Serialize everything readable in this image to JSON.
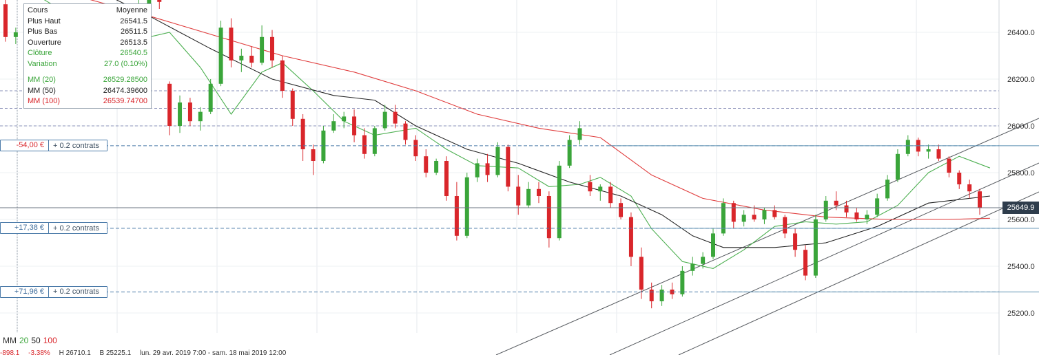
{
  "tooltip": {
    "header_left": "Cours",
    "header_right": "Moyenne",
    "rows": [
      {
        "label": "Plus Haut",
        "value": "26541.5"
      },
      {
        "label": "Plus Bas",
        "value": "26511.5"
      },
      {
        "label": "Ouverture",
        "value": "26513.5"
      },
      {
        "label": "Clôture",
        "value": "26540.5"
      },
      {
        "label": "Variation",
        "value": "27.0 (0.10%)"
      }
    ],
    "ma_rows": [
      {
        "label": "MM (20)",
        "value": "26529.28500"
      },
      {
        "label": "MM (50)",
        "value": "26474.39600"
      },
      {
        "label": "MM (100)",
        "value": "26539.74700"
      }
    ]
  },
  "orders": [
    {
      "pnl": "-54,00 €",
      "qty": "+ 0.2 contrats",
      "price": 25915
    },
    {
      "pnl": "+17,38 €",
      "qty": "+ 0.2 contrats",
      "price": 25562
    },
    {
      "pnl": "+71,96 €",
      "qty": "+ 0.2 contrats",
      "price": 25290
    }
  ],
  "current_price": {
    "label": "25649.9",
    "value": 25649.9
  },
  "legend": {
    "prefix": "MM",
    "ma20": "20",
    "ma50": "50",
    "ma100": "100"
  },
  "footer": {
    "change": "-898.1",
    "pct": "-3.38%",
    "high": "H 26710.1",
    "low": "B 25225.1",
    "range": "lun. 29 avr. 2019 7:00 - sam. 18 mai 2019 12:00"
  },
  "colors": {
    "up": "#3aa53a",
    "down": "#d9262b",
    "ma20": "#4caf50",
    "ma50": "#222222",
    "ma100": "#e03c3c",
    "price_tag": "#2f3d4c",
    "order_line": "#4a7aa8"
  },
  "chart_data": {
    "type": "candlestick",
    "y_axis": {
      "ticks": [
        25200,
        25400,
        25600,
        25800,
        26000,
        26200,
        26400
      ],
      "tick_labels": [
        "25200.0",
        "25400.0",
        "25600.0",
        "25800.0",
        "26000.0",
        "26200.0",
        "26400.0"
      ],
      "range": [
        25100,
        26500
      ]
    },
    "reference_lines": [
      26150,
      26075,
      26000
    ],
    "candles": [
      [
        26520,
        26600,
        26360,
        26380
      ],
      [
        26380,
        26420,
        26350,
        26400
      ],
      [
        26400,
        26460,
        26360,
        26440
      ],
      [
        26440,
        26480,
        26390,
        26430
      ],
      [
        26430,
        26470,
        26340,
        26360
      ],
      [
        26360,
        26380,
        26180,
        26230
      ],
      [
        26230,
        26300,
        26200,
        26280
      ],
      [
        26280,
        26330,
        26260,
        26310
      ],
      [
        26310,
        26340,
        26280,
        26320
      ],
      [
        26320,
        26350,
        26290,
        26300
      ],
      [
        26300,
        26330,
        26270,
        26310
      ],
      [
        26310,
        26370,
        26300,
        26350
      ],
      [
        26350,
        26480,
        26340,
        26450
      ],
      [
        26450,
        26540,
        26420,
        26520
      ],
      [
        26520,
        26560,
        26480,
        26540
      ],
      [
        26540,
        26560,
        26500,
        26530
      ],
      [
        26180,
        26190,
        25960,
        26000
      ],
      [
        26000,
        26130,
        25970,
        26100
      ],
      [
        26100,
        26120,
        26000,
        26020
      ],
      [
        26020,
        26080,
        25980,
        26060
      ],
      [
        26060,
        26200,
        26050,
        26180
      ],
      [
        26180,
        26450,
        26170,
        26420
      ],
      [
        26420,
        26460,
        26250,
        26280
      ],
      [
        26280,
        26330,
        26230,
        26300
      ],
      [
        26300,
        26340,
        26250,
        26270
      ],
      [
        26270,
        26430,
        26260,
        26380
      ],
      [
        26380,
        26410,
        26250,
        26280
      ],
      [
        26280,
        26300,
        26120,
        26150
      ],
      [
        26150,
        26160,
        26000,
        26030
      ],
      [
        26030,
        26050,
        25850,
        25900
      ],
      [
        25900,
        25920,
        25790,
        25850
      ],
      [
        25850,
        26000,
        25840,
        25980
      ],
      [
        25980,
        26050,
        25970,
        26020
      ],
      [
        26020,
        26060,
        25990,
        26040
      ],
      [
        26040,
        26070,
        25930,
        25960
      ],
      [
        25960,
        25990,
        25860,
        25880
      ],
      [
        25880,
        26000,
        25870,
        25990
      ],
      [
        25990,
        26090,
        25980,
        26060
      ],
      [
        26060,
        26090,
        25990,
        26010
      ],
      [
        26010,
        26020,
        25920,
        25940
      ],
      [
        25940,
        25960,
        25850,
        25870
      ],
      [
        25870,
        25900,
        25780,
        25800
      ],
      [
        25800,
        25860,
        25790,
        25850
      ],
      [
        25850,
        25870,
        25680,
        25700
      ],
      [
        25700,
        25760,
        25510,
        25530
      ],
      [
        25530,
        25800,
        25520,
        25780
      ],
      [
        25780,
        25860,
        25760,
        25840
      ],
      [
        25840,
        25880,
        25760,
        25790
      ],
      [
        25790,
        25930,
        25780,
        25910
      ],
      [
        25910,
        25920,
        25720,
        25740
      ],
      [
        25740,
        25790,
        25620,
        25660
      ],
      [
        25660,
        25760,
        25650,
        25730
      ],
      [
        25730,
        25760,
        25670,
        25700
      ],
      [
        25700,
        25720,
        25480,
        25520
      ],
      [
        25520,
        25850,
        25510,
        25830
      ],
      [
        25830,
        25960,
        25820,
        25940
      ],
      [
        25940,
        26020,
        25920,
        25990
      ],
      [
        25760,
        25790,
        25700,
        25720
      ],
      [
        25720,
        25750,
        25680,
        25740
      ],
      [
        25740,
        25760,
        25650,
        25670
      ],
      [
        25670,
        25690,
        25600,
        25610
      ],
      [
        25610,
        25630,
        25400,
        25440
      ],
      [
        25440,
        25480,
        25260,
        25300
      ],
      [
        25300,
        25330,
        25220,
        25250
      ],
      [
        25250,
        25320,
        25230,
        25300
      ],
      [
        25300,
        25330,
        25260,
        25280
      ],
      [
        25280,
        25400,
        25270,
        25380
      ],
      [
        25380,
        25440,
        25360,
        25410
      ],
      [
        25410,
        25460,
        25390,
        25440
      ],
      [
        25440,
        25560,
        25430,
        25540
      ],
      [
        25540,
        25690,
        25530,
        25670
      ],
      [
        25670,
        25680,
        25560,
        25590
      ],
      [
        25590,
        25640,
        25570,
        25620
      ],
      [
        25620,
        25660,
        25590,
        25600
      ],
      [
        25600,
        25650,
        25580,
        25640
      ],
      [
        25640,
        25660,
        25600,
        25610
      ],
      [
        25610,
        25620,
        25520,
        25540
      ],
      [
        25540,
        25560,
        25440,
        25470
      ],
      [
        25470,
        25490,
        25340,
        25360
      ],
      [
        25360,
        25620,
        25350,
        25600
      ],
      [
        25600,
        25700,
        25590,
        25680
      ],
      [
        25680,
        25720,
        25640,
        25660
      ],
      [
        25660,
        25680,
        25610,
        25630
      ],
      [
        25630,
        25650,
        25590,
        25600
      ],
      [
        25600,
        25640,
        25580,
        25620
      ],
      [
        25620,
        25710,
        25610,
        25690
      ],
      [
        25690,
        25790,
        25680,
        25770
      ],
      [
        25770,
        25900,
        25760,
        25880
      ],
      [
        25880,
        25960,
        25870,
        25940
      ],
      [
        25940,
        25950,
        25870,
        25890
      ],
      [
        25890,
        25920,
        25860,
        25900
      ],
      [
        25900,
        25920,
        25850,
        25860
      ],
      [
        25860,
        25870,
        25780,
        25800
      ],
      [
        25800,
        25810,
        25730,
        25750
      ],
      [
        25750,
        25770,
        25690,
        25720
      ],
      [
        25720,
        25730,
        25620,
        25650
      ]
    ],
    "ma_lines": {
      "MM (20)": [
        [
          0,
          26620
        ],
        [
          3,
          26560
        ],
        [
          6,
          26480
        ],
        [
          9,
          26400
        ],
        [
          12,
          26330
        ],
        [
          14,
          26380
        ],
        [
          16,
          26400
        ],
        [
          19,
          26250
        ],
        [
          22,
          26050
        ],
        [
          25,
          26230
        ],
        [
          27,
          26270
        ],
        [
          30,
          26150
        ],
        [
          33,
          26020
        ],
        [
          36,
          25960
        ],
        [
          40,
          25990
        ],
        [
          43,
          25900
        ],
        [
          46,
          25830
        ],
        [
          50,
          25820
        ],
        [
          53,
          25740
        ],
        [
          56,
          25750
        ],
        [
          58,
          25780
        ],
        [
          61,
          25700
        ],
        [
          63,
          25560
        ],
        [
          66,
          25420
        ],
        [
          69,
          25390
        ],
        [
          72,
          25470
        ],
        [
          75,
          25570
        ],
        [
          78,
          25590
        ],
        [
          81,
          25580
        ],
        [
          84,
          25590
        ],
        [
          87,
          25660
        ],
        [
          90,
          25800
        ],
        [
          93,
          25870
        ],
        [
          96,
          25820
        ]
      ],
      "MM (50)": [
        [
          0,
          26750
        ],
        [
          8,
          26600
        ],
        [
          14,
          26470
        ],
        [
          20,
          26330
        ],
        [
          26,
          26200
        ],
        [
          32,
          26130
        ],
        [
          36,
          26110
        ],
        [
          40,
          26000
        ],
        [
          45,
          25900
        ],
        [
          50,
          25840
        ],
        [
          55,
          25760
        ],
        [
          60,
          25700
        ],
        [
          64,
          25620
        ],
        [
          67,
          25530
        ],
        [
          70,
          25480
        ],
        [
          75,
          25480
        ],
        [
          80,
          25500
        ],
        [
          85,
          25570
        ],
        [
          90,
          25670
        ],
        [
          96,
          25700
        ]
      ],
      "MM (100)": [
        [
          0,
          26640
        ],
        [
          14,
          26470
        ],
        [
          27,
          26300
        ],
        [
          34,
          26230
        ],
        [
          40,
          26150
        ],
        [
          46,
          26050
        ],
        [
          52,
          25990
        ],
        [
          58,
          25950
        ],
        [
          63,
          25790
        ],
        [
          68,
          25690
        ],
        [
          74,
          25640
        ],
        [
          80,
          25610
        ],
        [
          86,
          25600
        ],
        [
          92,
          25600
        ],
        [
          96,
          25605
        ]
      ]
    }
  }
}
